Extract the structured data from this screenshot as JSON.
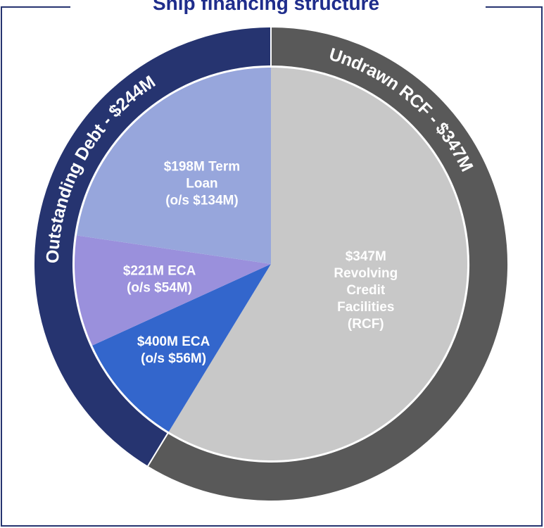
{
  "chart_data": {
    "type": "pie",
    "title": "Ship financing structure",
    "inner": {
      "labels": [
        [
          "$347M",
          "Revolving",
          "Credit",
          "Facilities",
          "(RCF)"
        ],
        [
          "$400M ECA",
          "(o/s $56M)"
        ],
        [
          "$221M ECA",
          "(o/s $54M)"
        ],
        [
          "$198M Term",
          "Loan",
          "(o/s $134M)"
        ]
      ],
      "values": [
        347,
        56,
        54,
        134
      ],
      "colors": [
        "#c8c8c8",
        "#3366cc",
        "#9a90dc",
        "#97a6dc"
      ]
    },
    "outer": {
      "labels": [
        "Undrawn RCF - $347M",
        "Outstanding Debt - $244M"
      ],
      "values": [
        347,
        244
      ],
      "colors": [
        "#595959",
        "#263470"
      ]
    }
  }
}
